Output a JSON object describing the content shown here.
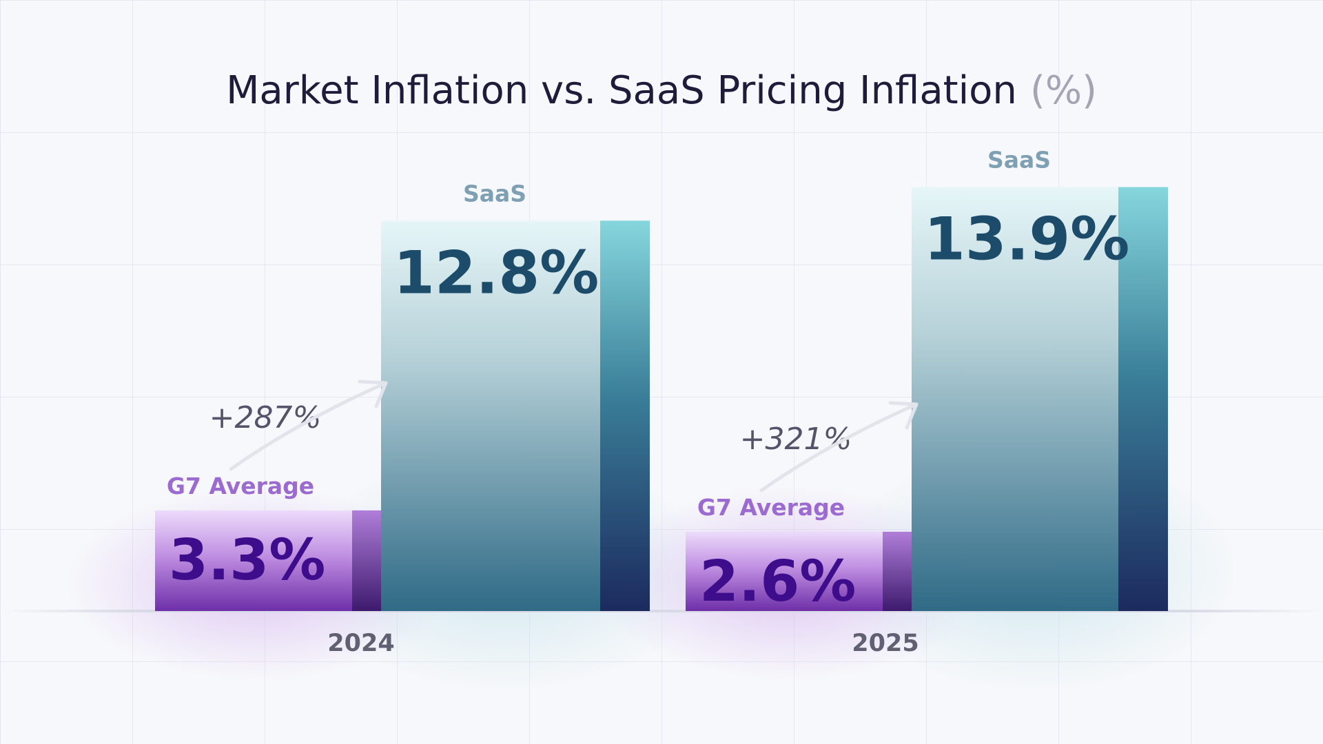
{
  "title": "Market Inflation vs. SaaS Pricing Inflation",
  "title_unit": "(%)",
  "chart_data": {
    "type": "bar",
    "title": "Market Inflation vs. SaaS Pricing Inflation (%)",
    "categories": [
      "2024",
      "2025"
    ],
    "series": [
      {
        "name": "G7 Average",
        "values": [
          3.3,
          2.6
        ],
        "value_labels": [
          "3.3%",
          "2.6%"
        ],
        "color": "#9a54c8",
        "text_color": "#3d0d8c"
      },
      {
        "name": "SaaS",
        "values": [
          12.8,
          13.9
        ],
        "value_labels": [
          "12.8%",
          "13.9%"
        ],
        "color": "#3d7a93",
        "text_color": "#1d4c6b"
      }
    ],
    "annotations": [
      "+287%",
      "+321%"
    ],
    "ylim": [
      0,
      14.5
    ],
    "grid": true,
    "legend": "none"
  },
  "colors": {
    "title": "#1f1b3a",
    "g7_label": "#9b6bcf",
    "saas_label": "#7f9fb2",
    "axis_text": "#5f6172"
  }
}
